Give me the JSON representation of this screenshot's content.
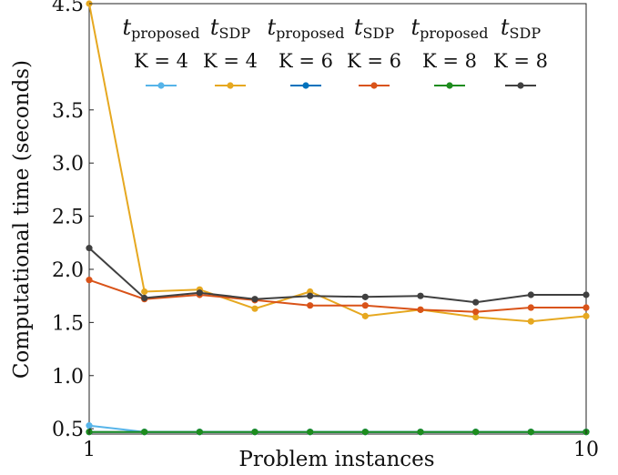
{
  "chart_data": {
    "type": "line",
    "xlabel": "Problem instances",
    "ylabel": "Computational time (seconds)",
    "xlim": [
      1,
      10
    ],
    "ylim": [
      0.45,
      4.5
    ],
    "x_tick_labels": [
      "1",
      "10"
    ],
    "y_tick_labels": [
      "0.5",
      "1.0",
      "1.5",
      "2.0",
      "2.5",
      "3.0",
      "3.5",
      "4.5"
    ],
    "grid": false,
    "legend_position": "top",
    "x": [
      1,
      2,
      3,
      4,
      5,
      6,
      7,
      8,
      9,
      10
    ],
    "series": [
      {
        "name": "t_proposed, K = 4",
        "main": "t",
        "sub": "proposed",
        "k_label": "K = 4",
        "color": "#56B4E9",
        "values": [
          0.53,
          0.47,
          0.47,
          0.47,
          0.47,
          0.47,
          0.47,
          0.47,
          0.47,
          0.47
        ]
      },
      {
        "name": "t_SDP, K = 4",
        "main": "t",
        "sub": "SDP",
        "k_label": "K = 4",
        "color": "#E6A820",
        "values": [
          4.5,
          1.79,
          1.81,
          1.63,
          1.79,
          1.56,
          1.62,
          1.55,
          1.51,
          1.56
        ]
      },
      {
        "name": "t_proposed, K = 6",
        "main": "t",
        "sub": "proposed",
        "k_label": "K = 6",
        "color": "#0072BD",
        "values": [
          0.47,
          0.47,
          0.47,
          0.47,
          0.47,
          0.47,
          0.47,
          0.47,
          0.47,
          0.47
        ]
      },
      {
        "name": "t_SDP, K = 6",
        "main": "t",
        "sub": "SDP",
        "k_label": "K = 6",
        "color": "#D95319",
        "values": [
          1.9,
          1.72,
          1.76,
          1.71,
          1.66,
          1.66,
          1.62,
          1.6,
          1.64,
          1.64
        ]
      },
      {
        "name": "t_proposed, K = 8",
        "main": "t",
        "sub": "proposed",
        "k_label": "K = 8",
        "color": "#1E8C1E",
        "values": [
          0.47,
          0.47,
          0.47,
          0.47,
          0.47,
          0.47,
          0.47,
          0.47,
          0.47,
          0.47
        ]
      },
      {
        "name": "t_SDP, K = 8",
        "main": "t",
        "sub": "SDP",
        "k_label": "K = 8",
        "color": "#404040",
        "values": [
          2.2,
          1.73,
          1.78,
          1.72,
          1.75,
          1.74,
          1.75,
          1.69,
          1.76,
          1.76
        ]
      }
    ]
  }
}
